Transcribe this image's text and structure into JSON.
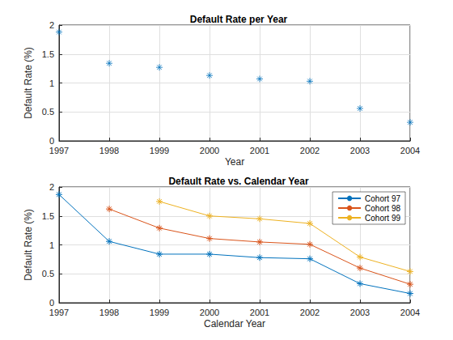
{
  "chart_data": [
    {
      "type": "scatter",
      "title": "Default Rate per Year",
      "xlabel": "Year",
      "ylabel": "Default Rate (%)",
      "x": [
        1997,
        1998,
        1999,
        2000,
        2001,
        2002,
        2003,
        2004
      ],
      "values": [
        1.88,
        1.34,
        1.27,
        1.13,
        1.07,
        1.03,
        0.56,
        0.32
      ],
      "color": "#0072bd",
      "marker": "asterisk",
      "xlim": [
        1997,
        2004
      ],
      "xticks": [
        1997,
        1998,
        1999,
        2000,
        2001,
        2002,
        2003,
        2004
      ],
      "ylim": [
        0,
        2
      ],
      "yticks": [
        0,
        0.5,
        1,
        1.5,
        2
      ],
      "grid": true
    },
    {
      "type": "line",
      "title": "Default Rate vs. Calendar Year",
      "xlabel": "Calendar Year",
      "ylabel": "Default Rate (%)",
      "x": [
        1997,
        1998,
        1999,
        2000,
        2001,
        2002,
        2003,
        2004
      ],
      "series": [
        {
          "name": "Cohort 97",
          "color": "#0072bd",
          "values": [
            1.87,
            1.06,
            0.84,
            0.84,
            0.78,
            0.76,
            0.33,
            0.16
          ]
        },
        {
          "name": "Cohort 98",
          "color": "#d95319",
          "values": [
            null,
            1.62,
            1.29,
            1.11,
            1.05,
            1.01,
            0.6,
            0.32
          ]
        },
        {
          "name": "Cohort 99",
          "color": "#edb120",
          "values": [
            null,
            null,
            1.75,
            1.5,
            1.45,
            1.37,
            0.79,
            0.54
          ]
        }
      ],
      "marker": "asterisk",
      "legend": "top-right",
      "xlim": [
        1997,
        2004
      ],
      "xticks": [
        1997,
        1998,
        1999,
        2000,
        2001,
        2002,
        2003,
        2004
      ],
      "ylim": [
        0,
        2
      ],
      "yticks": [
        0,
        0.5,
        1,
        1.5,
        2
      ],
      "grid": true
    }
  ]
}
